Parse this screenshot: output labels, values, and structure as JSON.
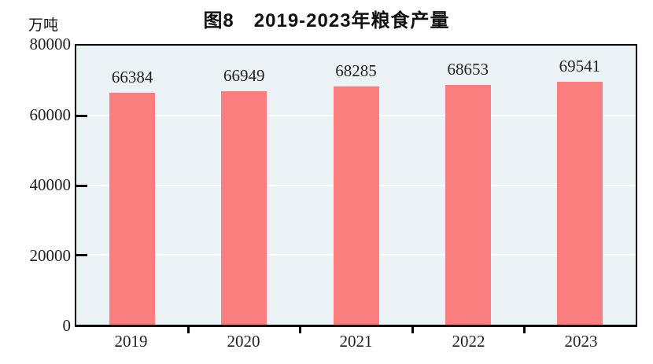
{
  "chart_data": {
    "type": "bar",
    "title": "图8　2019-2023年粮食产量",
    "unit_label": "万吨",
    "categories": [
      "2019",
      "2020",
      "2021",
      "2022",
      "2023"
    ],
    "values": [
      66384,
      66949,
      68285,
      68653,
      69541
    ],
    "ylim": [
      0,
      80000
    ],
    "yticks": [
      0,
      20000,
      40000,
      60000,
      80000
    ],
    "bar_color": "#FB7E7E",
    "plot_bg": "#ECF3F6",
    "gridline_color": "#FFFFFF",
    "gridlines_at": [
      20000,
      40000,
      60000
    ],
    "legend": "none",
    "xlabel": "",
    "ylabel": "万吨"
  }
}
